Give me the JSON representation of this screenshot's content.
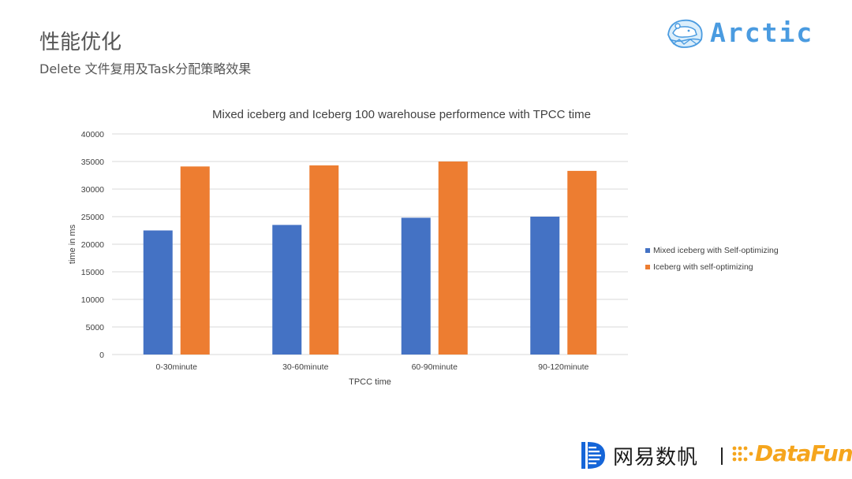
{
  "slide": {
    "title": "性能优化",
    "subtitle": "Delete 文件复用及Task分配策略效果"
  },
  "brand": {
    "arctic_text": "Arctic",
    "footer_left_text": "网易数帆",
    "footer_separator": "|",
    "footer_right_text": "DataFun."
  },
  "colors": {
    "series_mixed": "#4472C4",
    "series_iceberg": "#ED7D31",
    "arctic_brand": "#4a9be0",
    "datafun_brand": "#f5a51d",
    "netease_brand": "#1565d8"
  },
  "icons": {
    "arctic": "polar-bear-on-ice-icon",
    "netease": "netease-shuffle-logo-icon",
    "datafun": "datafun-dot-logo-icon"
  },
  "chart_data": {
    "type": "bar",
    "title": "Mixed iceberg and Iceberg 100 warehouse performence with TPCC time",
    "xlabel": "TPCC time",
    "ylabel": "time in ms",
    "categories": [
      "0-30minute",
      "30-60minute",
      "60-90minute",
      "90-120minute"
    ],
    "series": [
      {
        "name": "Mixed iceberg with Self-optimizing",
        "values": [
          22500,
          23500,
          24800,
          25000
        ]
      },
      {
        "name": "Iceberg with self-optimizing",
        "values": [
          34100,
          34300,
          35000,
          33300
        ]
      }
    ],
    "ylim": [
      0,
      40000
    ],
    "yticks": [
      "0",
      "5000",
      "10000",
      "15000",
      "20000",
      "25000",
      "30000",
      "35000",
      "40000"
    ],
    "grid": true,
    "legend_position": "right"
  }
}
